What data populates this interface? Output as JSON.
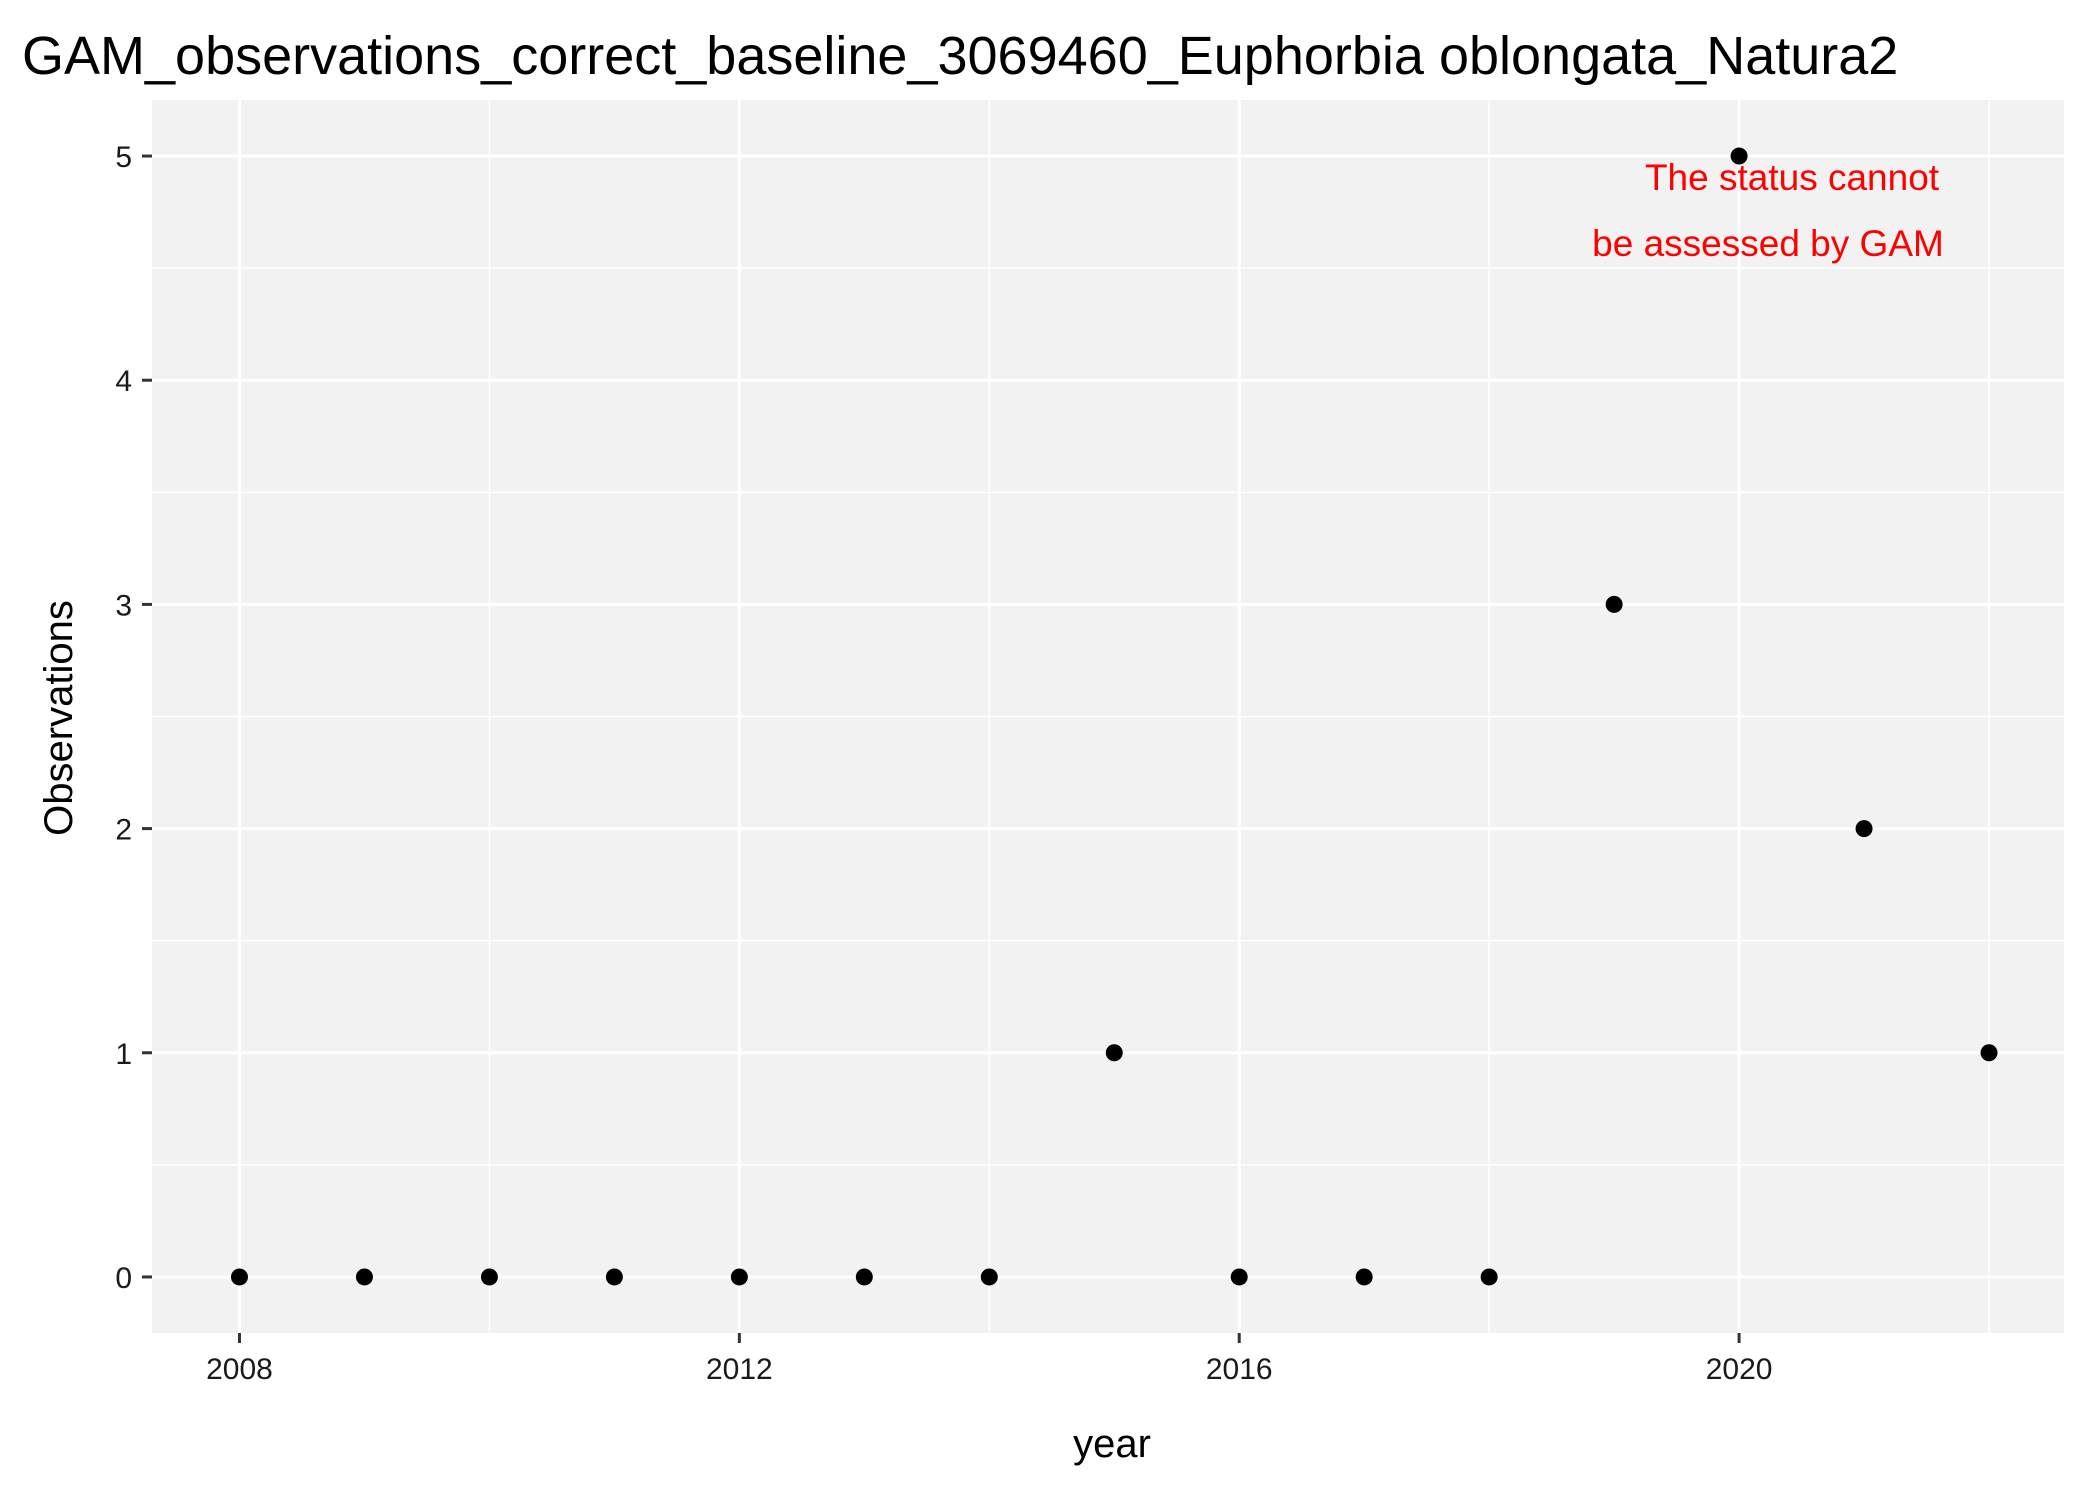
{
  "chart_data": {
    "type": "scatter",
    "title": "GAM_observations_correct_baseline_3069460_Euphorbia oblongata_Natura2",
    "xlabel": "year",
    "ylabel": "Observations",
    "xlim": [
      2007.3,
      2022.6
    ],
    "ylim": [
      -0.25,
      5.25
    ],
    "x_ticks": [
      2008,
      2012,
      2016,
      2020
    ],
    "y_ticks": [
      0,
      1,
      2,
      3,
      4,
      5
    ],
    "grid": true,
    "panel_background": "#f2f2f2",
    "grid_color": "#ffffff",
    "point_color": "#000000",
    "x": [
      2008,
      2009,
      2010,
      2011,
      2012,
      2013,
      2014,
      2015,
      2016,
      2017,
      2018,
      2019,
      2020,
      2021,
      2022
    ],
    "y": [
      0,
      0,
      0,
      0,
      0,
      0,
      0,
      1,
      0,
      0,
      0,
      3,
      5,
      2,
      1
    ],
    "annotation": {
      "lines": [
        "The status cannot",
        "be assessed by GAM"
      ],
      "color": "#ff0000"
    }
  }
}
